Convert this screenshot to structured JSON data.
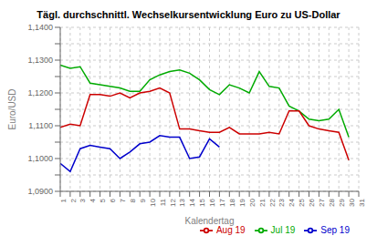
{
  "chart_data": {
    "type": "line",
    "title": "Tägl. durchschnittl. Wechselkursentwicklung Euro zu US-Dollar",
    "x_label": "Kalendertag",
    "y_label": "Euro/USD",
    "x": [
      1,
      2,
      3,
      4,
      5,
      6,
      7,
      8,
      9,
      10,
      11,
      12,
      13,
      14,
      15,
      16,
      17,
      18,
      19,
      20,
      21,
      22,
      23,
      24,
      25,
      26,
      27,
      28,
      29,
      30,
      31
    ],
    "series": [
      {
        "name": "Jul 19",
        "color": "#00aa00",
        "values": [
          1.1285,
          1.1275,
          1.128,
          1.123,
          1.1225,
          1.122,
          1.1215,
          1.1205,
          1.1205,
          1.124,
          1.1255,
          1.1265,
          1.127,
          1.126,
          1.124,
          1.121,
          1.1195,
          1.1225,
          1.1215,
          1.12,
          1.1265,
          1.122,
          1.1215,
          1.116,
          1.1145,
          1.112,
          1.1115,
          1.112,
          1.115,
          1.1065,
          null
        ]
      },
      {
        "name": "Aug 19",
        "color": "#cc0000",
        "values": [
          1.1095,
          1.1105,
          1.11,
          1.1195,
          1.1195,
          1.119,
          1.12,
          1.1185,
          1.12,
          1.1205,
          1.1215,
          1.12,
          1.109,
          1.109,
          1.1085,
          1.108,
          1.108,
          1.1095,
          1.1075,
          1.1075,
          1.1075,
          1.108,
          1.1075,
          1.1145,
          1.1145,
          1.11,
          1.109,
          1.1085,
          1.108,
          1.0995,
          null
        ]
      },
      {
        "name": "Sep 19",
        "color": "#0000cc",
        "values": [
          1.0985,
          1.096,
          1.103,
          1.104,
          1.1035,
          1.103,
          1.1,
          1.102,
          1.1045,
          1.105,
          1.107,
          1.1065,
          1.1065,
          1.1,
          1.1005,
          1.106,
          1.1035,
          null,
          null,
          null,
          null,
          null,
          null,
          null,
          null,
          null,
          null,
          null,
          null,
          null,
          null
        ]
      }
    ],
    "xlim": [
      1,
      31
    ],
    "xticks": [
      1,
      2,
      3,
      4,
      5,
      6,
      7,
      8,
      9,
      10,
      11,
      12,
      13,
      14,
      15,
      16,
      17,
      18,
      19,
      20,
      21,
      22,
      23,
      24,
      25,
      26,
      27,
      28,
      29,
      30,
      31
    ],
    "ylim": [
      1.09,
      1.14
    ],
    "yticks": [
      {
        "value": 1.09,
        "label": "1,0900"
      },
      {
        "value": 1.095,
        "label": null
      },
      {
        "value": 1.1,
        "label": "1,1000"
      },
      {
        "value": 1.105,
        "label": null
      },
      {
        "value": 1.11,
        "label": "1,1100"
      },
      {
        "value": 1.115,
        "label": null
      },
      {
        "value": 1.12,
        "label": "1,1200"
      },
      {
        "value": 1.125,
        "label": null
      },
      {
        "value": 1.13,
        "label": "1,1300"
      },
      {
        "value": 1.135,
        "label": null
      },
      {
        "value": 1.14,
        "label": "1,1400"
      }
    ],
    "grid": true,
    "legend": "lower right"
  }
}
